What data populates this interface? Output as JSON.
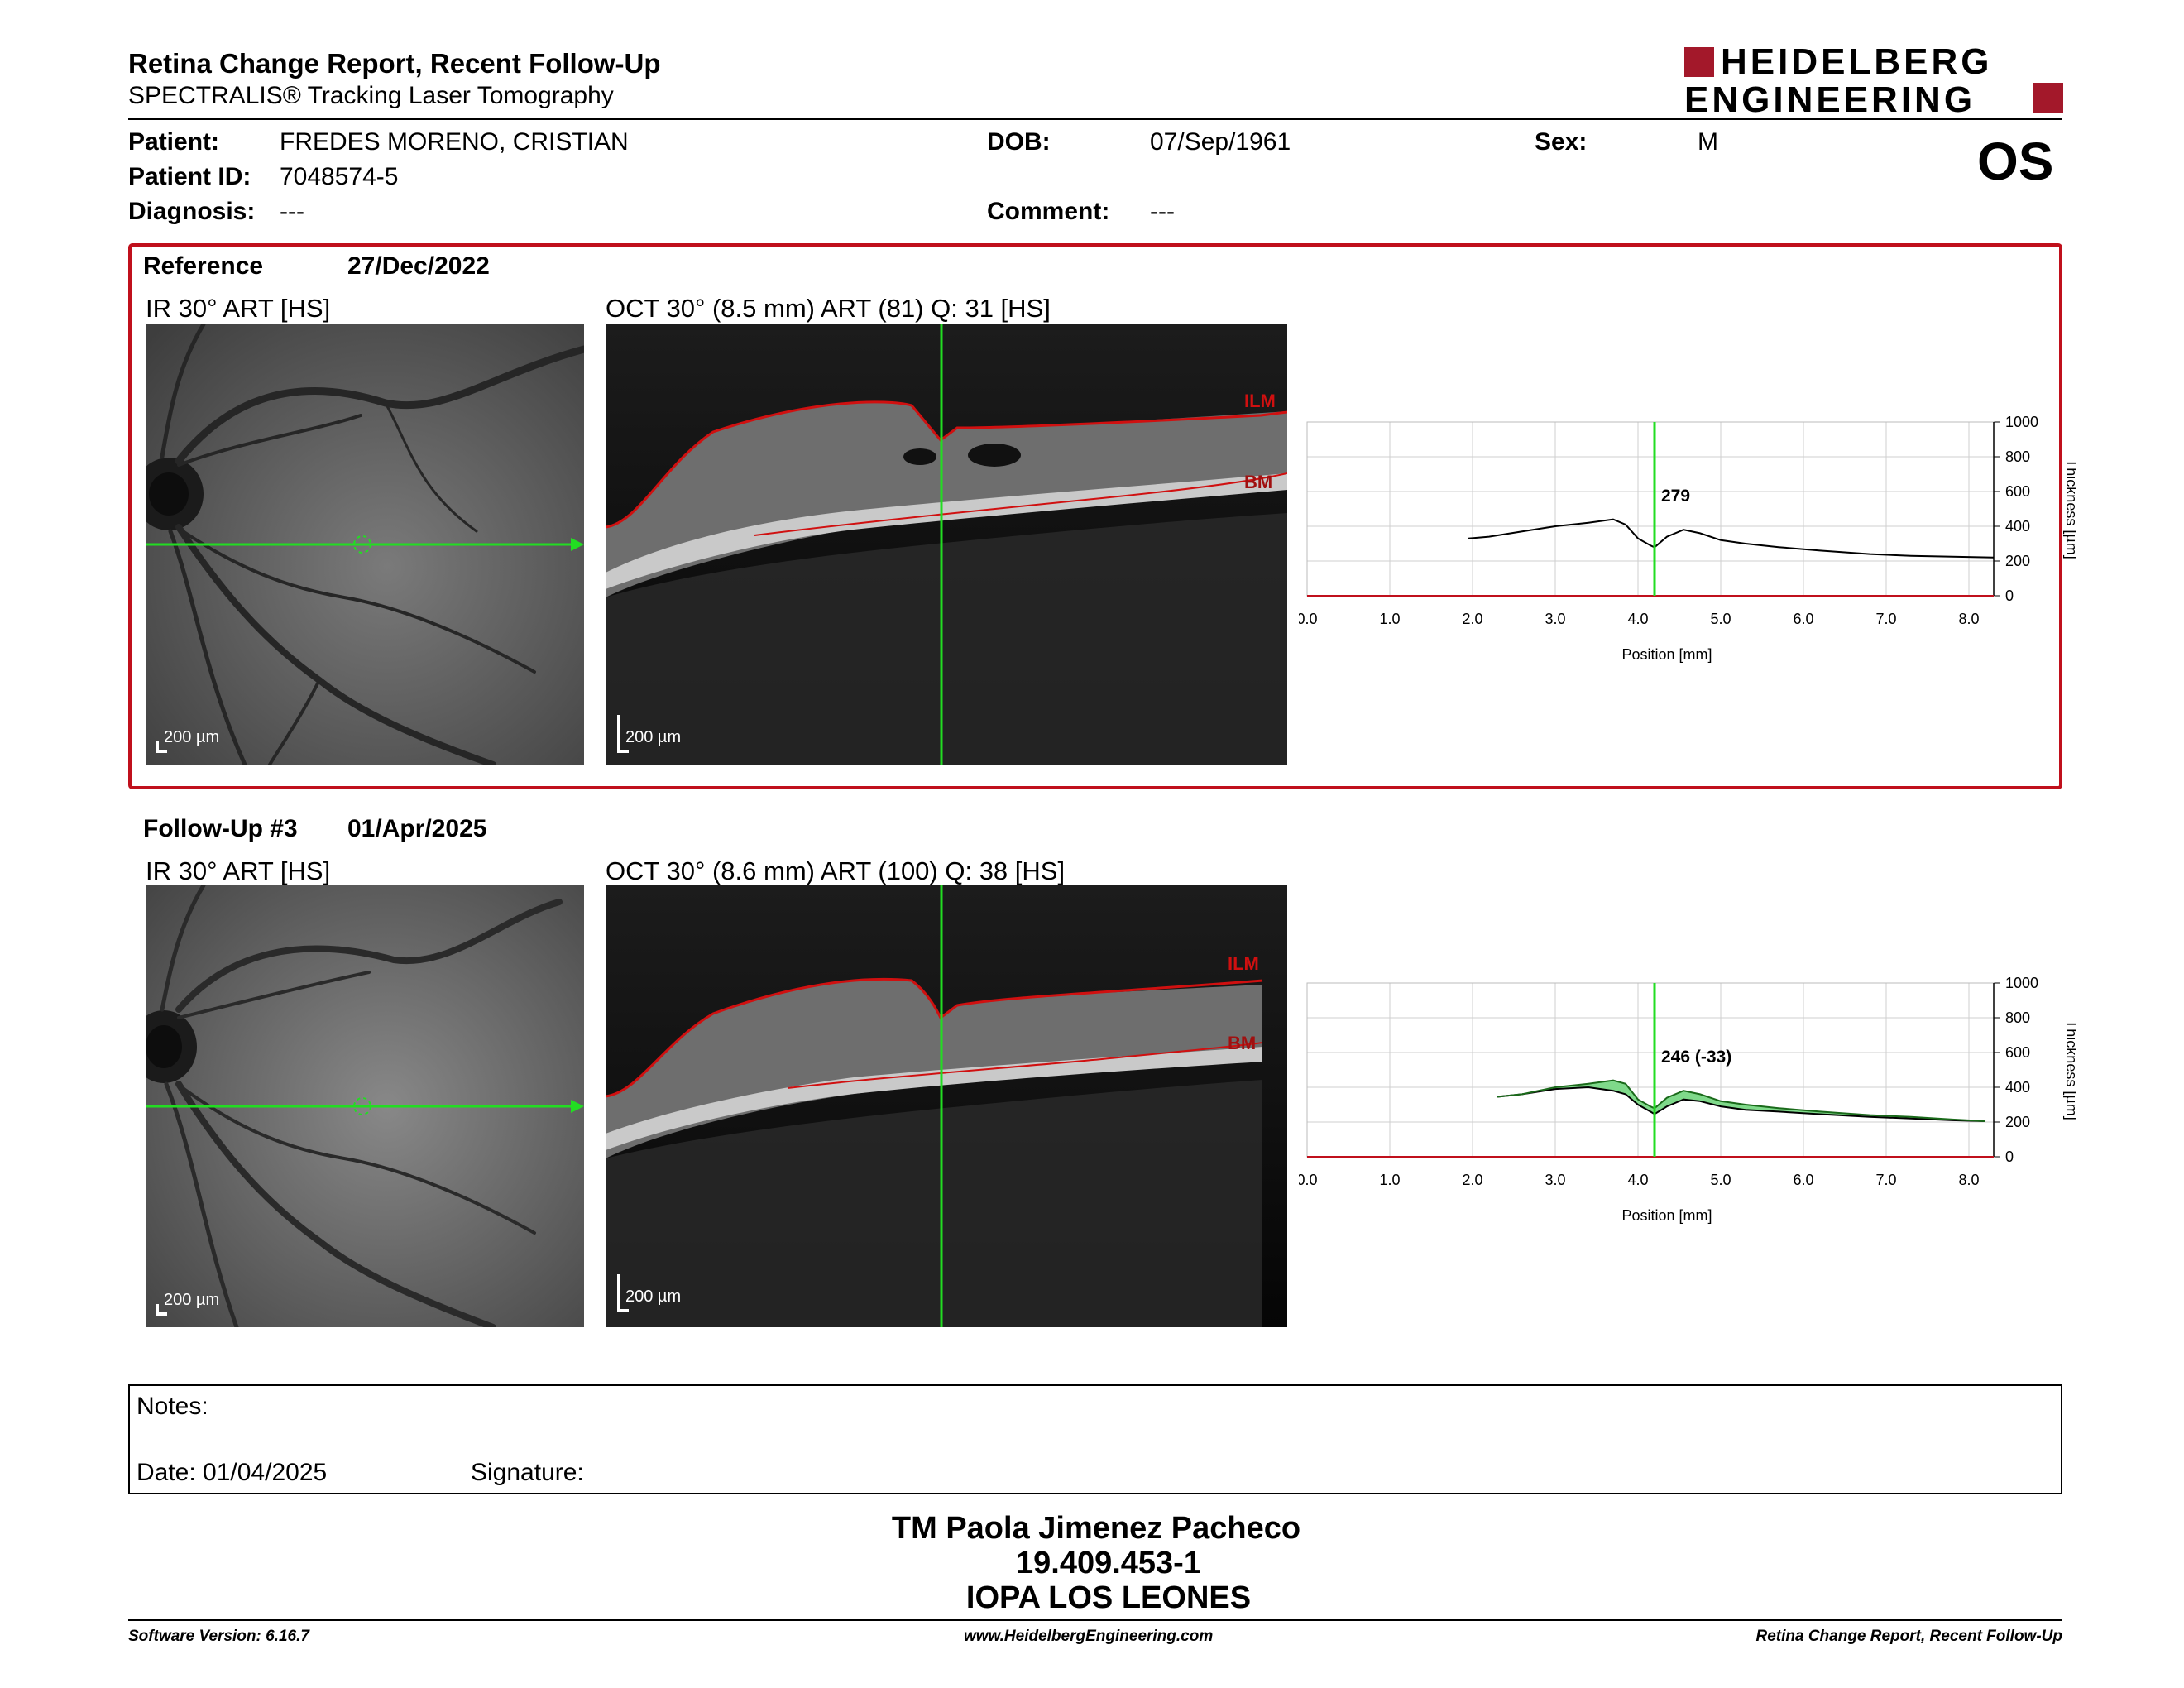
{
  "report": {
    "title": "Retina Change Report, Recent Follow-Up",
    "subtitle": "SPECTRALIS® Tracking Laser Tomography",
    "brand_line1": "HEIDELBERG",
    "brand_line2": "ENGINEERING",
    "eye": "OS"
  },
  "patient": {
    "patient_label": "Patient:",
    "name": "FREDES MORENO, CRISTIAN",
    "id_label": "Patient ID:",
    "id": "7048574-5",
    "diagnosis_label": "Diagnosis:",
    "diagnosis": "---",
    "dob_label": "DOB:",
    "dob": "07/Sep/1961",
    "comment_label": "Comment:",
    "comment": "---",
    "sex_label": "Sex:",
    "sex": "M"
  },
  "reference": {
    "label": "Reference",
    "date": "27/Dec/2022",
    "ir_caption": "IR 30° ART [HS]",
    "oct_caption": "OCT 30° (8.5 mm) ART (81) Q: 31 [HS]",
    "scale": "200 µm",
    "ilm": "ILM",
    "bm": "BM"
  },
  "followup": {
    "label": "Follow-Up #3",
    "date": "01/Apr/2025",
    "ir_caption": "IR 30° ART [HS]",
    "oct_caption": "OCT 30° (8.6 mm) ART (100) Q: 38 [HS]",
    "scale": "200 µm",
    "ilm": "ILM",
    "bm": "BM"
  },
  "notes": {
    "notes_label": "Notes:",
    "date_label": "Date: 01/04/2025",
    "signature_label": "Signature:"
  },
  "signoff": {
    "line1": "TM Paola Jimenez Pacheco",
    "line2": "19.409.453-1",
    "line3": "IOPA LOS LEONES"
  },
  "footer": {
    "left": "Software Version: 6.16.7",
    "center": "www.HeidelbergEngineering.com",
    "right": "Retina Change Report, Recent Follow-Up"
  },
  "colors": {
    "frame_red": "#c0101c",
    "scan_green": "#22dd22",
    "diff_fill": "#7fd98a"
  },
  "chart_data": [
    {
      "type": "line",
      "xlabel": "Position [mm]",
      "ylabel": "Thickness [µm]",
      "xlim": [
        0,
        8.3
      ],
      "ylim": [
        0,
        1000
      ],
      "xticks": [
        "0.0",
        "1.0",
        "2.0",
        "3.0",
        "4.0",
        "5.0",
        "6.0",
        "7.0",
        "8.0"
      ],
      "yticks": [
        "0",
        "200",
        "400",
        "600",
        "800",
        "1000"
      ],
      "marker_x": 4.2,
      "marker_label": "279",
      "series": [
        {
          "x": [
            1.95,
            2.2,
            2.6,
            3.0,
            3.4,
            3.7,
            3.85,
            4.0,
            4.15,
            4.2,
            4.35,
            4.55,
            4.75,
            5.0,
            5.3,
            5.7,
            6.2,
            6.8,
            7.3,
            7.8,
            8.3
          ],
          "y": [
            330,
            340,
            370,
            400,
            420,
            440,
            410,
            330,
            290,
            279,
            340,
            380,
            360,
            320,
            300,
            280,
            260,
            240,
            230,
            225,
            220
          ]
        }
      ]
    },
    {
      "type": "area",
      "xlabel": "Position [mm]",
      "ylabel": "Thickness [µm]",
      "xlim": [
        0,
        8.3
      ],
      "ylim": [
        0,
        1000
      ],
      "xticks": [
        "0.0",
        "1.0",
        "2.0",
        "3.0",
        "4.0",
        "5.0",
        "6.0",
        "7.0",
        "8.0"
      ],
      "yticks": [
        "0",
        "200",
        "400",
        "600",
        "800",
        "1000"
      ],
      "marker_x": 4.2,
      "marker_label": "246 (-33)",
      "series": [
        {
          "x": [
            2.3,
            2.6,
            3.0,
            3.4,
            3.7,
            3.85,
            4.0,
            4.15,
            4.2,
            4.35,
            4.55,
            4.75,
            5.0,
            5.3,
            5.7,
            6.2,
            6.8,
            7.3,
            7.8,
            8.2
          ],
          "y": [
            345,
            360,
            390,
            400,
            380,
            360,
            300,
            260,
            246,
            290,
            330,
            320,
            290,
            270,
            260,
            245,
            230,
            220,
            210,
            205
          ]
        },
        {
          "x": [
            2.3,
            2.6,
            3.0,
            3.4,
            3.7,
            3.85,
            4.0,
            4.15,
            4.2,
            4.35,
            4.55,
            4.75,
            5.0,
            5.3,
            5.7,
            6.2,
            6.8,
            7.3,
            7.8,
            8.2
          ],
          "y": [
            345,
            360,
            400,
            420,
            440,
            420,
            330,
            290,
            279,
            340,
            380,
            360,
            320,
            300,
            280,
            260,
            240,
            230,
            215,
            205
          ]
        }
      ]
    }
  ]
}
